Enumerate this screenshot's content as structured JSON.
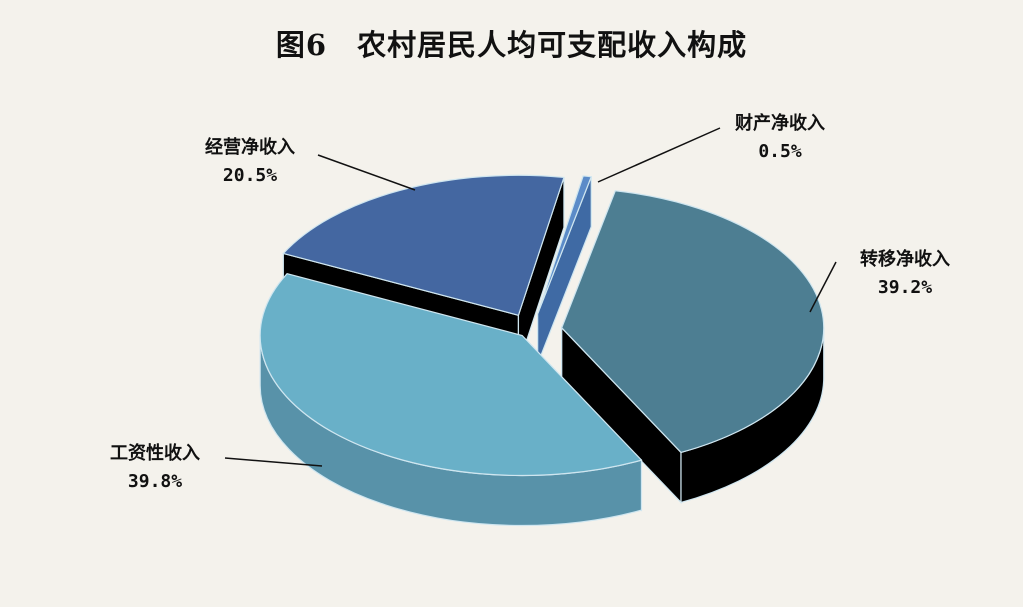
{
  "chart_data": {
    "type": "pie",
    "title": "图6　农村居民人均可支配收入构成",
    "three_d": true,
    "exploded": true,
    "slices": [
      {
        "label": "财产净收入",
        "value": 0.5,
        "value_label": "0.5%",
        "color": "#5b8bc8",
        "side": "#3f6aa4"
      },
      {
        "label": "转移净收入",
        "value": 39.2,
        "value_label": "39.2%",
        "color": "#4d7e92",
        "side": "#000000"
      },
      {
        "label": "工资性收入",
        "value": 39.8,
        "value_label": "39.8%",
        "color": "#69b0c8",
        "side": "#5892a9"
      },
      {
        "label": "经营净收入",
        "value": 20.5,
        "value_label": "20.5%",
        "color": "#4467a1",
        "side": "#000000"
      }
    ]
  }
}
